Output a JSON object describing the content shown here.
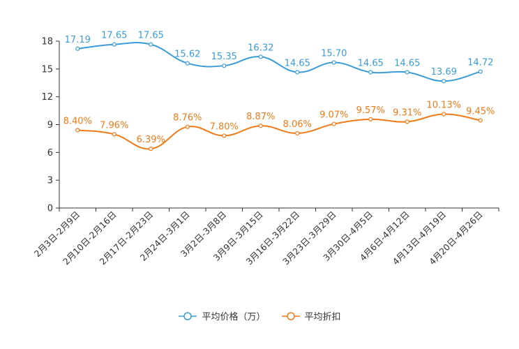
{
  "colors": {
    "price": "#3a9cd6",
    "discount": "#f07a17",
    "axis": "#333333",
    "text": "#333333"
  },
  "chart_data": {
    "type": "line",
    "categories": [
      "2月3日-2月9日",
      "2月10日-2月16日",
      "2月17日-2月23日",
      "2月24日-3月1日",
      "3月2日-3月8日",
      "3月9日-3月15日",
      "3月16日-3月22日",
      "3月23日-3月29日",
      "3月30日-4月5日",
      "4月6日-4月12日",
      "4月13日-4月19日",
      "4月20日-4月26日"
    ],
    "ylim": [
      0,
      18
    ],
    "yticks": [
      "0",
      "3",
      "6",
      "9",
      "12",
      "15",
      "18"
    ],
    "series": [
      {
        "name": "平均价格（万）",
        "values": [
          17.19,
          17.65,
          17.65,
          15.62,
          15.35,
          16.32,
          14.65,
          15.7,
          14.65,
          14.65,
          13.69,
          14.72
        ],
        "labels": [
          "17.19",
          "17.65",
          "17.65",
          "15.62",
          "15.35",
          "16.32",
          "14.65",
          "15.70",
          "14.65",
          "14.65",
          "13.69",
          "14.72"
        ]
      },
      {
        "name": "平均折扣",
        "values": [
          8.4,
          7.96,
          6.39,
          8.76,
          7.8,
          8.87,
          8.06,
          9.07,
          9.57,
          9.31,
          10.13,
          9.45
        ],
        "labels": [
          "8.40%",
          "7.96%",
          "6.39%",
          "8.76%",
          "7.80%",
          "8.87%",
          "8.06%",
          "9.07%",
          "9.57%",
          "9.31%",
          "10.13%",
          "9.45%"
        ]
      }
    ]
  }
}
